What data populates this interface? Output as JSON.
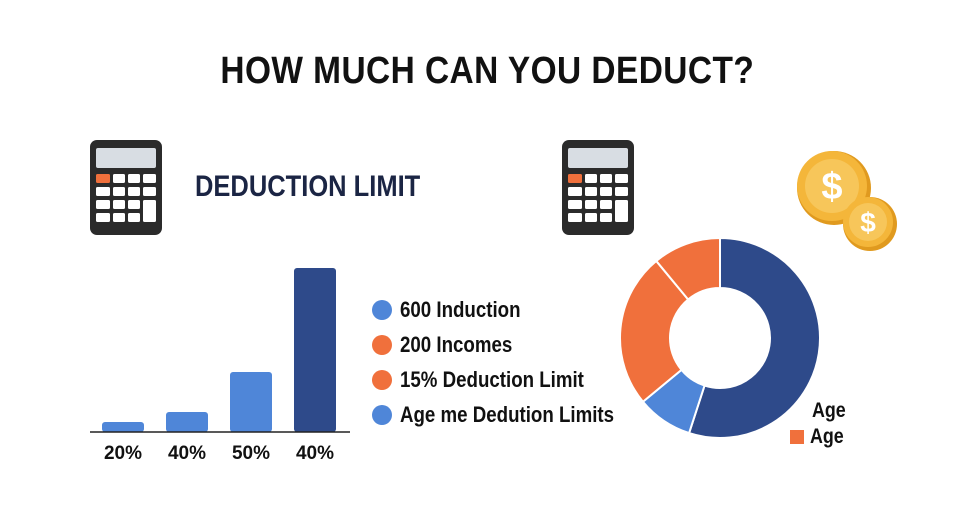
{
  "title": "HOW MUCH CAN YOU DEDUCT?",
  "subtitle": "DEDUCTION LIMIT",
  "icons": {
    "calculator_left": "calculator-icon",
    "calculator_right": "calculator-icon",
    "coins": "dollar-coins-icon"
  },
  "colors": {
    "dark_blue": "#2e4a8a",
    "light_blue": "#4f86d8",
    "orange": "#f0703c",
    "coin_gold": "#f4b63a"
  },
  "chart_data": [
    {
      "type": "bar",
      "categories": [
        "20%",
        "40%",
        "50%",
        "40%"
      ],
      "values": [
        5,
        10,
        30,
        82
      ],
      "colors": [
        "#4f86d8",
        "#4f86d8",
        "#4f86d8",
        "#2e4a8a"
      ],
      "ylim": [
        0,
        85
      ],
      "grid": false,
      "legend": {
        "position": "right",
        "entries": [
          {
            "label": "600 Induction",
            "color": "#4f86d8"
          },
          {
            "label": "200 Incomes",
            "color": "#f0703c"
          },
          {
            "label": "15% Deduction Limit",
            "color": "#f0703c"
          },
          {
            "label": "Age me Dedution Limits",
            "color": "#4f86d8"
          }
        ]
      }
    },
    {
      "type": "pie",
      "donut": true,
      "slices": [
        {
          "value": 55,
          "color": "#2e4a8a"
        },
        {
          "value": 9,
          "color": "#4f86d8"
        },
        {
          "value": 25,
          "color": "#f0703c"
        },
        {
          "value": 11,
          "color": "#f0703c"
        }
      ],
      "legend": {
        "position": "bottom-right",
        "entries": [
          {
            "label": "Age",
            "color": ""
          },
          {
            "label": "Age",
            "color": "#f0703c"
          }
        ]
      }
    }
  ]
}
